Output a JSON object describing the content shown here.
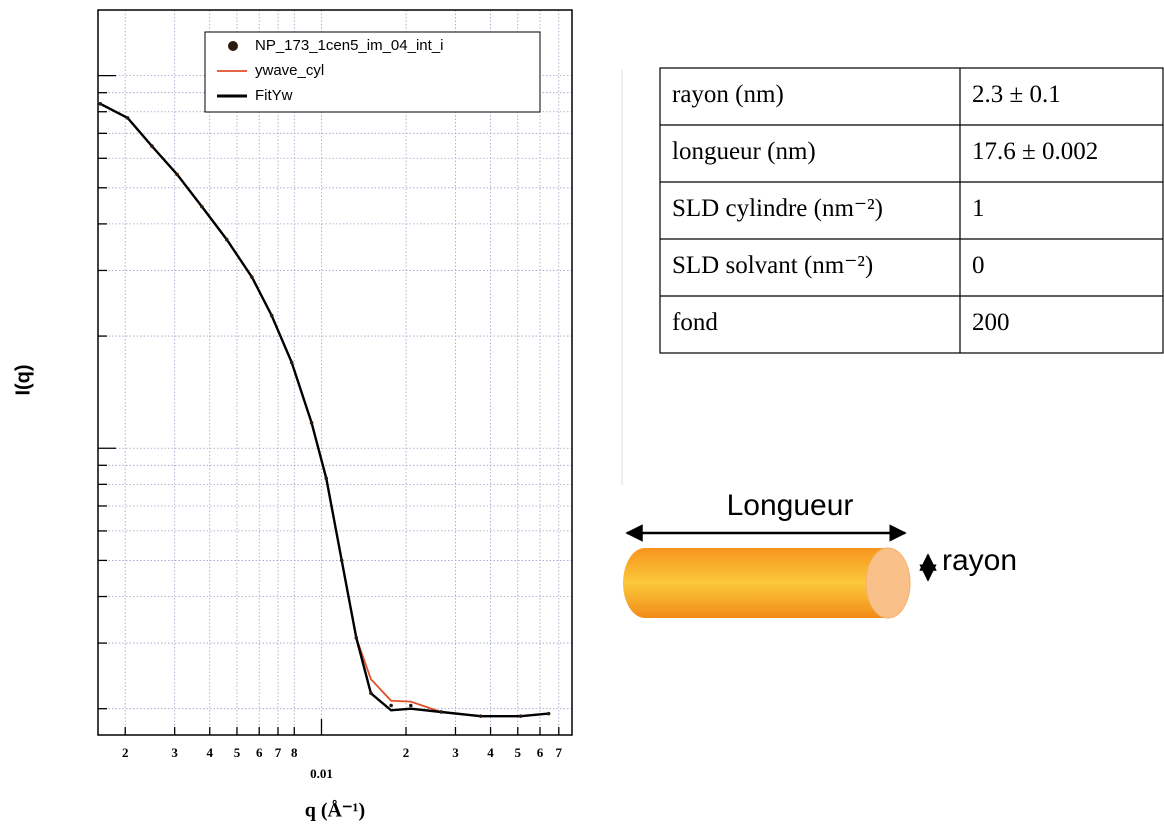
{
  "chart_data": {
    "type": "line",
    "xlabel": "q (Å⁻¹)",
    "ylabel": "I(q)",
    "x": [
      0.00163,
      0.00204,
      0.00249,
      0.00306,
      0.00375,
      0.0046,
      0.00565,
      0.00665,
      0.00783,
      0.00922,
      0.0104,
      0.0118,
      0.0133,
      0.015,
      0.0177,
      0.0208,
      0.0267,
      0.0369,
      0.0512,
      0.0644
    ],
    "series": [
      {
        "name": "NP_173_1cen5_im_04_int_i",
        "color": "#2b1a0e",
        "mode": "markers",
        "values": [
          8.4,
          7.7,
          6.47,
          5.43,
          4.45,
          3.63,
          2.88,
          2.27,
          1.7,
          1.17,
          0.83,
          0.5,
          0.31,
          0.22,
          0.204,
          0.204,
          0.196,
          0.191,
          0.191,
          0.194
        ]
      },
      {
        "name": "ywave_cyl",
        "color": "#e0502a",
        "mode": "lines",
        "values": [
          8.4,
          7.7,
          6.47,
          5.43,
          4.45,
          3.63,
          2.88,
          2.27,
          1.7,
          1.17,
          0.83,
          0.5,
          0.31,
          0.24,
          0.21,
          0.209,
          0.196,
          0.191,
          0.191,
          0.194
        ]
      },
      {
        "name": "FitYw",
        "color": "#000000",
        "mode": "lines",
        "values": [
          8.4,
          7.7,
          6.47,
          5.43,
          4.45,
          3.63,
          2.88,
          2.27,
          1.7,
          1.17,
          0.83,
          0.5,
          0.31,
          0.22,
          0.198,
          0.2,
          0.196,
          0.191,
          0.191,
          0.194
        ]
      }
    ],
    "xscale": "log",
    "yscale": "log",
    "xlim": [
      0.0016,
      0.078
    ],
    "ylim": [
      0.17,
      15
    ],
    "xticks": [
      {
        "value": 0.002,
        "label": "2"
      },
      {
        "value": 0.003,
        "label": "3"
      },
      {
        "value": 0.004,
        "label": "4"
      },
      {
        "value": 0.005,
        "label": "5"
      },
      {
        "value": 0.006,
        "label": "6"
      },
      {
        "value": 0.007,
        "label": "7"
      },
      {
        "value": 0.008,
        "label": "8"
      },
      {
        "value": 0.01,
        "label": "0.01"
      },
      {
        "value": 0.02,
        "label": "2"
      },
      {
        "value": 0.03,
        "label": "3"
      },
      {
        "value": 0.04,
        "label": "4"
      },
      {
        "value": 0.05,
        "label": "5"
      },
      {
        "value": 0.06,
        "label": "6"
      },
      {
        "value": 0.07,
        "label": "7"
      }
    ],
    "yticks": [
      0.2,
      0.3,
      0.4,
      0.5,
      0.6,
      0.7,
      0.8,
      0.9,
      1,
      2,
      3,
      4,
      5,
      6,
      7,
      8,
      9,
      10
    ],
    "grid": true,
    "legend": "upper right"
  },
  "table": {
    "rows": [
      [
        "rayon (nm)",
        "2.3 ± 0.1"
      ],
      [
        "longueur (nm)",
        "17.6 ± 0.002"
      ],
      [
        "SLD cylindre (nm⁻²)",
        "1"
      ],
      [
        "SLD solvant (nm⁻²)",
        "0"
      ],
      [
        "fond",
        "200"
      ]
    ]
  },
  "diagram": {
    "length_label": "Longueur",
    "radius_label": "rayon"
  }
}
